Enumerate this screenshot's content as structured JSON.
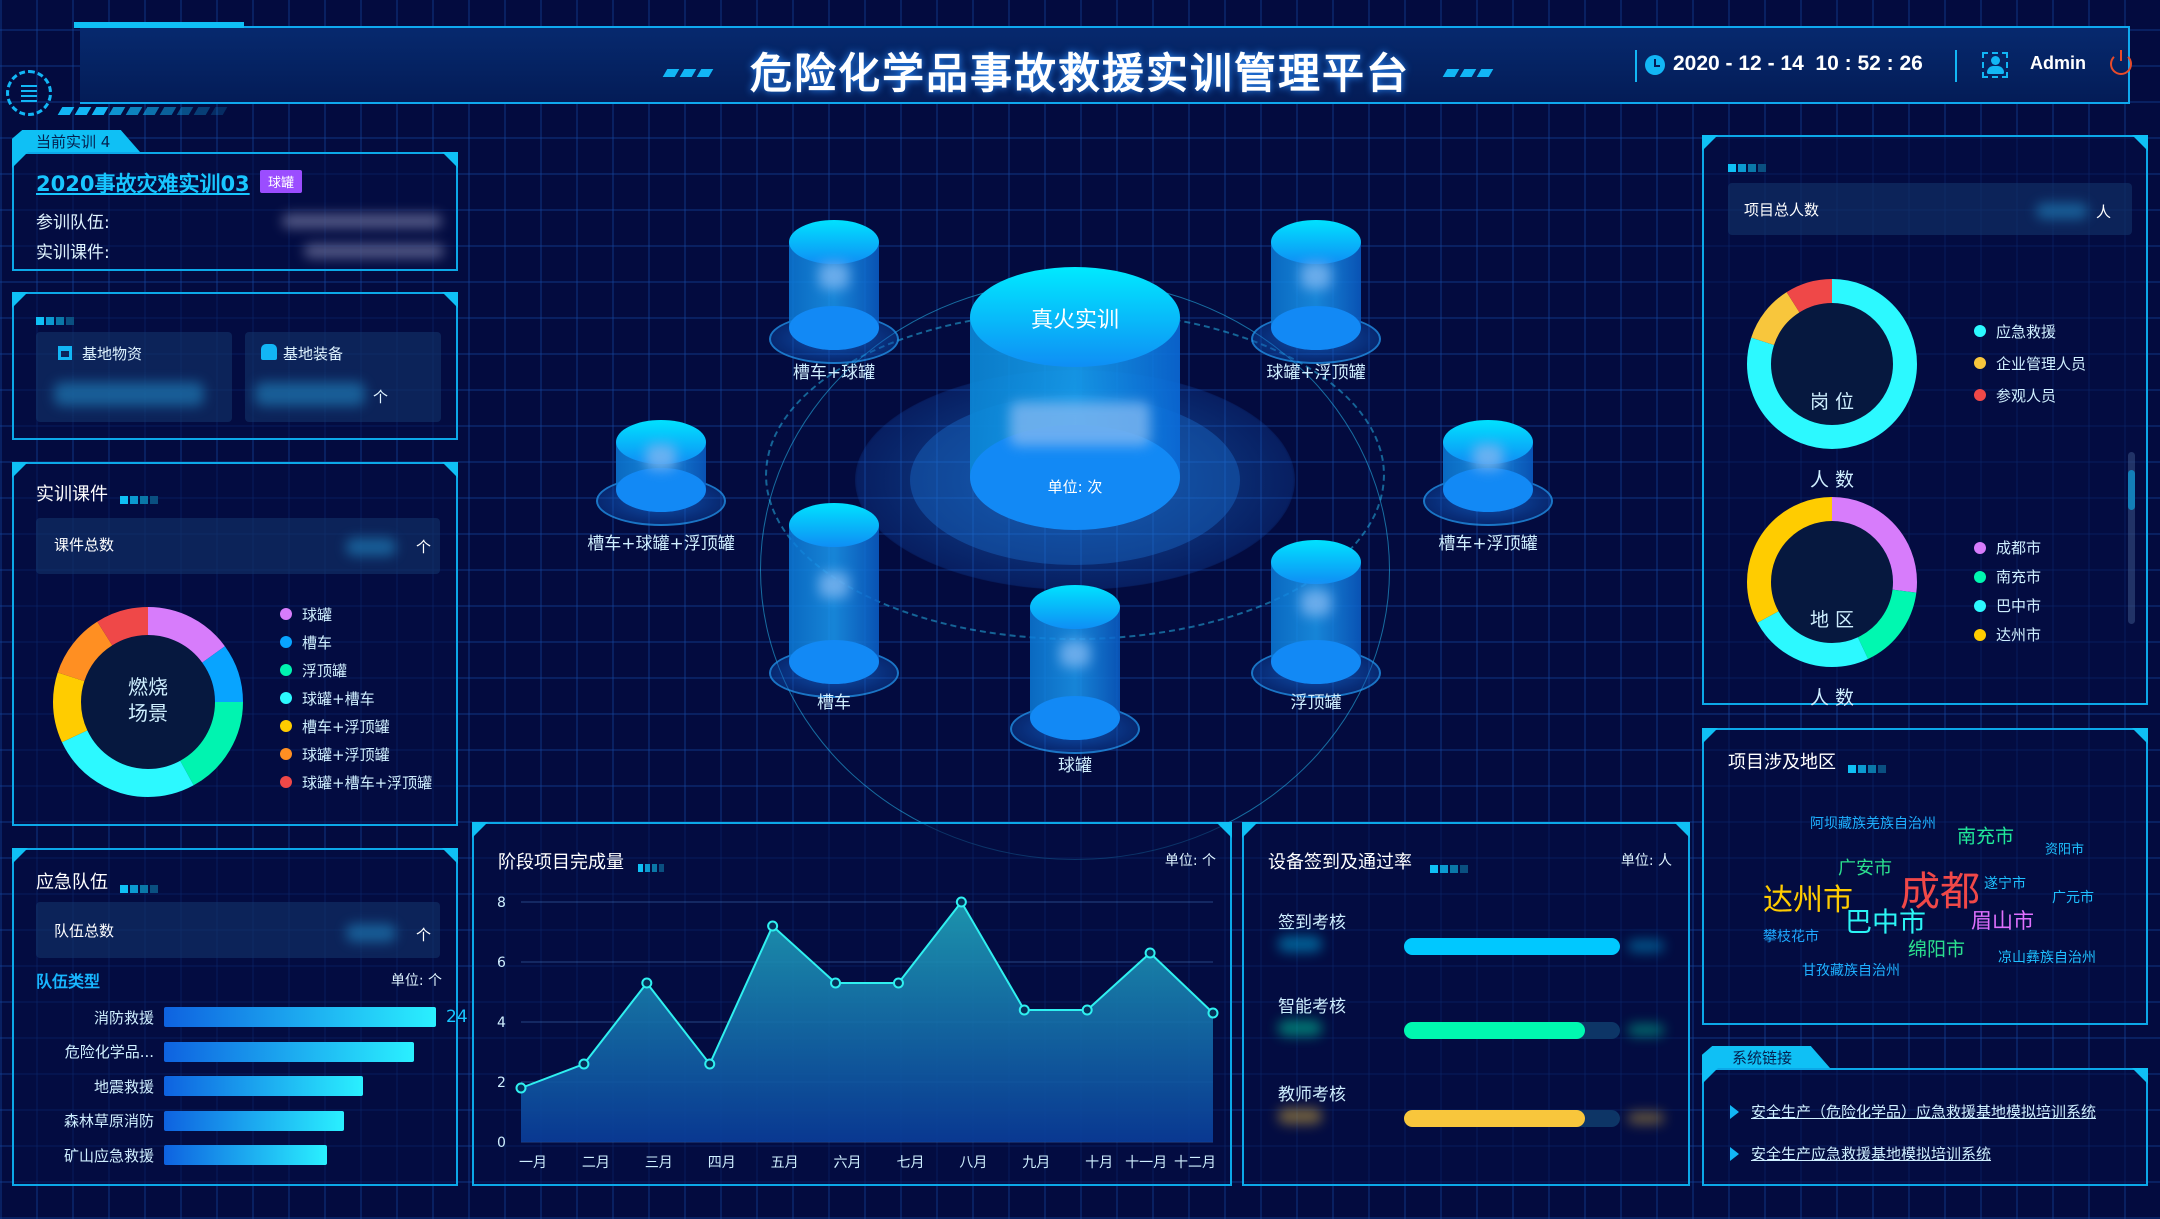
{
  "header": {
    "title": "危险化学品事故救援实训管理平台",
    "datetime": "2020 - 12 - 14  10 : 52 : 26",
    "user": "Admin",
    "icons": [
      "menu-icon",
      "clock-icon",
      "user-icon",
      "power-icon"
    ]
  },
  "current_training": {
    "tab_label": "当前实训 4",
    "name": "2020事故灾难实训03",
    "badge": "球罐",
    "badge_color": "#9b4dff",
    "team_label": "参训队伍:",
    "courseware_label": "实训课件:"
  },
  "base": {
    "materials_label": "基地物资",
    "equipment_label": "基地装备",
    "unit": "个"
  },
  "courseware": {
    "title": "实训课件",
    "total_label": "课件总数",
    "unit": "个",
    "donut": {
      "center": [
        "燃烧",
        "场景"
      ],
      "segments": [
        {
          "name": "球罐",
          "value": 15,
          "color": "#d77cfb"
        },
        {
          "name": "槽车",
          "value": 10,
          "color": "#08a4ff"
        },
        {
          "name": "浮顶罐",
          "value": 17,
          "color": "#00f4b0"
        },
        {
          "name": "球罐+槽车",
          "value": 26,
          "color": "#2cf9ff"
        },
        {
          "name": "槽车+浮顶罐",
          "value": 12,
          "color": "#ffcc00"
        },
        {
          "name": "球罐+浮顶罐",
          "value": 11,
          "color": "#ff8f22"
        },
        {
          "name": "球罐+槽车+浮顶罐",
          "value": 9,
          "color": "#ef4848"
        }
      ]
    }
  },
  "teams": {
    "title": "应急队伍",
    "total_label": "队伍总数",
    "unit": "个",
    "type_label": "队伍类型",
    "unit_label": "单位: 个",
    "bars": [
      {
        "name": "消防救援",
        "value": "24",
        "fill": 1.0
      },
      {
        "name": "危险化学品...",
        "value": "",
        "fill": 0.92
      },
      {
        "name": "地震救援",
        "value": "",
        "fill": 0.73
      },
      {
        "name": "森林草原消防",
        "value": "",
        "fill": 0.66
      },
      {
        "name": "矿山应急救援",
        "value": "",
        "fill": 0.6
      }
    ]
  },
  "center": {
    "main_label": "真火实训",
    "main_unit": "单位: 次",
    "items": [
      "槽车+球罐",
      "球罐+浮顶罐",
      "槽车+球罐+浮顶罐",
      "槽车+浮顶罐",
      "槽车",
      "浮顶罐",
      "球罐"
    ]
  },
  "chart_data": {
    "type": "area",
    "title": "阶段项目完成量",
    "unit_label": "单位: 个",
    "categories": [
      "一月",
      "二月",
      "三月",
      "四月",
      "五月",
      "六月",
      "七月",
      "八月",
      "九月",
      "十月",
      "十一月",
      "十二月"
    ],
    "values": [
      1.8,
      2.6,
      5.3,
      2.6,
      7.2,
      5.3,
      5.3,
      8.0,
      4.4,
      4.4,
      6.3,
      4.3
    ],
    "yticks": [
      "0",
      "2",
      "4",
      "6",
      "8"
    ],
    "ylim": [
      0,
      8
    ],
    "grid": true,
    "color": "#2ff0f0"
  },
  "devices": {
    "title": "设备签到及通过率",
    "unit_label": "单位: 人",
    "rows": [
      {
        "name": "签到考核",
        "rate": 1.0,
        "color": "#00c8ff"
      },
      {
        "name": "智能考核",
        "rate": 0.84,
        "color": "#00f8b0"
      },
      {
        "name": "教师考核",
        "rate": 0.84,
        "color": "#f8c63c"
      }
    ]
  },
  "people": {
    "total_label": "项目总人数",
    "unit": "人",
    "post": {
      "center": [
        "岗 位",
        "人 数"
      ],
      "segments": [
        {
          "name": "应急救援",
          "value": 80,
          "color": "#2cf9ff"
        },
        {
          "name": "企业管理人员",
          "value": 11,
          "color": "#f8c63c"
        },
        {
          "name": "参观人员",
          "value": 9,
          "color": "#ef4848"
        }
      ]
    },
    "region": {
      "center": [
        "地 区",
        "人 数"
      ],
      "segments": [
        {
          "name": "成都市",
          "value": 27,
          "color": "#d77cfb"
        },
        {
          "name": "南充市",
          "value": 16,
          "color": "#00f8b0"
        },
        {
          "name": "巴中市",
          "value": 24,
          "color": "#2cf9ff"
        },
        {
          "name": "达州市",
          "value": 33,
          "color": "#ffcc00"
        }
      ]
    }
  },
  "regions": {
    "title": "项目涉及地区",
    "words": [
      {
        "text": "阿坝藏族羌族自治州",
        "color": "#1eb0ff"
      },
      {
        "text": "南充市",
        "color": "#20e89a"
      },
      {
        "text": "资阳市",
        "color": "#1ec0ff"
      },
      {
        "text": "广安市",
        "color": "#2be08f"
      },
      {
        "text": "成都",
        "color": "#f04848"
      },
      {
        "text": "遂宁市",
        "color": "#1ec0ff"
      },
      {
        "text": "广元市",
        "color": "#1ec0ff"
      },
      {
        "text": "达州市",
        "color": "#ffcc00"
      },
      {
        "text": "巴中市",
        "color": "#2bf5f5"
      },
      {
        "text": "眉山市",
        "color": "#e070ff"
      },
      {
        "text": "攀枝花市",
        "color": "#1ea8ff"
      },
      {
        "text": "绵阳市",
        "color": "#2be08f"
      },
      {
        "text": "凉山彝族自治州",
        "color": "#1ec0ff"
      },
      {
        "text": "甘孜藏族自治州",
        "color": "#1eb0ff"
      }
    ]
  },
  "links": {
    "tab_label": "系统链接",
    "items": [
      "安全生产（危险化学品）应急救援基地模拟培训系统",
      "安全生产应急救援基地模拟培训系统"
    ]
  }
}
